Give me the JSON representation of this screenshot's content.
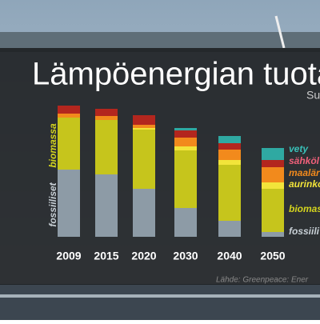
{
  "chart_data": {
    "type": "stacked-bar",
    "title": "Lämpöenergian tuota",
    "subtitle": "Su",
    "categories": [
      "2009",
      "2015",
      "2020",
      "2030",
      "2040",
      "2050"
    ],
    "series": [
      {
        "name": "fossiili",
        "color": "#8d9ba6",
        "label_color": "#c8d0d6",
        "values": [
          84,
          78,
          60,
          36,
          20,
          6
        ]
      },
      {
        "name": "biomas",
        "color": "#c6c51c",
        "label_color": "#d4d41e",
        "values": [
          65,
          68,
          74,
          72,
          70,
          54
        ]
      },
      {
        "name": "aurinko",
        "color": "#f2e43a",
        "label_color": "#f2e43a",
        "values": [
          0,
          0,
          2,
          5,
          6,
          8
        ]
      },
      {
        "name": "maalär",
        "color": "#f28a1c",
        "label_color": "#f28a1c",
        "values": [
          5,
          5,
          4,
          11,
          13,
          19
        ]
      },
      {
        "name": "sähköl",
        "color": "#b3261e",
        "label_color": "#f0607a",
        "values": [
          10,
          9,
          12,
          9,
          8,
          9
        ]
      },
      {
        "name": "vety",
        "color": "#2fa9a2",
        "label_color": "#39c0b8",
        "values": [
          0,
          0,
          0,
          3,
          9,
          15
        ]
      }
    ],
    "annotations": [
      "biomassa",
      "fossiiliset"
    ],
    "source": "Lähde: Greenpeace: Ener"
  }
}
